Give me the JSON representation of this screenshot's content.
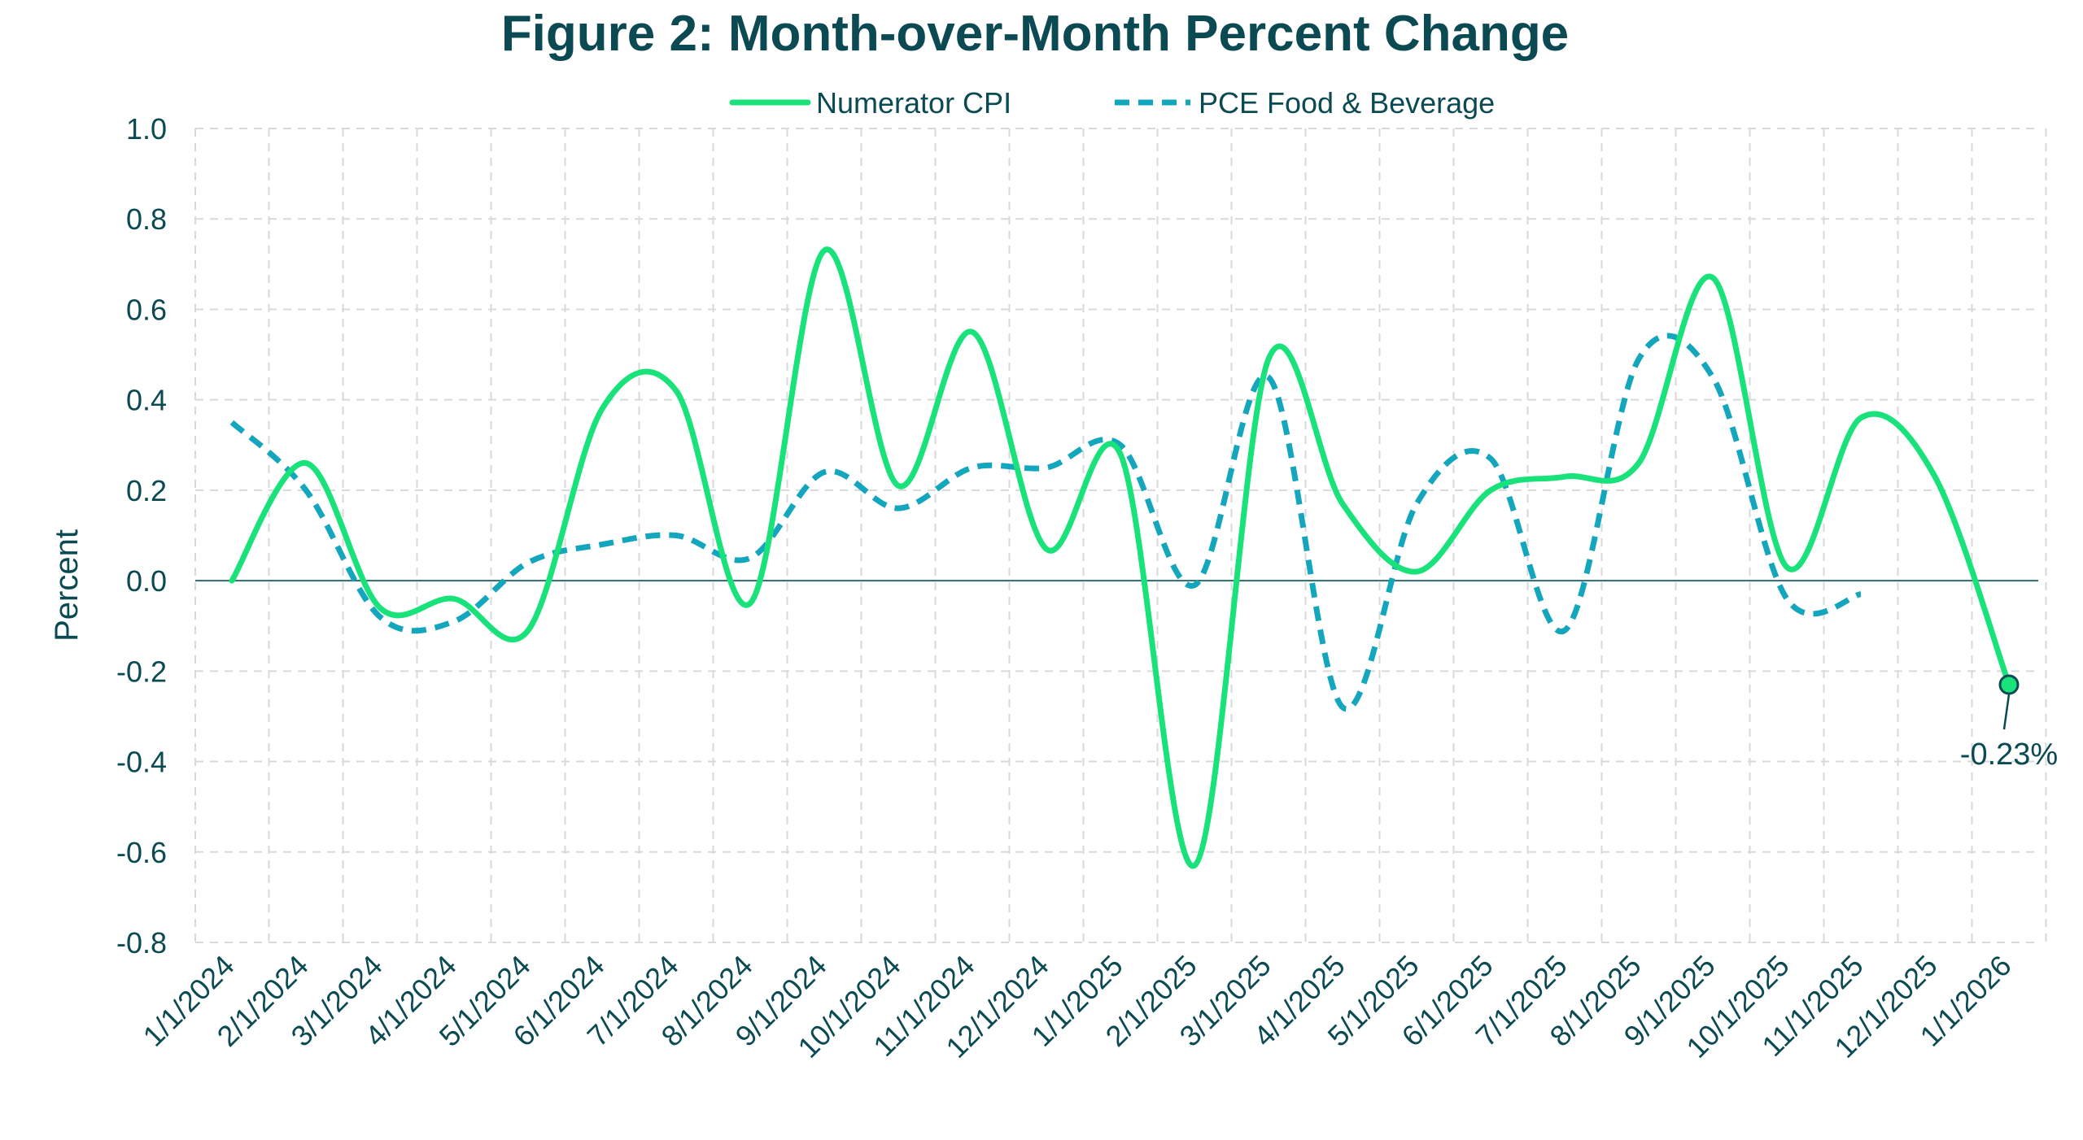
{
  "colors": {
    "title": "#0b4a52",
    "text": "#0b4a52",
    "grid": "#d9d9d9",
    "zero_line": "#2f6b6f",
    "numerator": "#19e27a",
    "pce": "#14a6bd",
    "marker_fill": "#19e27a",
    "marker_stroke": "#0b4a52"
  },
  "chart_data": {
    "type": "line",
    "title": "Figure 2: Month-over-Month Percent Change",
    "xlabel": "",
    "ylabel": "Percent",
    "ylim": [
      -0.8,
      1.0
    ],
    "yticks": [
      "1.0",
      "0.8",
      "0.6",
      "0.4",
      "0.2",
      "0.0",
      "-0.2",
      "-0.4",
      "-0.6",
      "-0.8"
    ],
    "grid": true,
    "legend_position": "top-center",
    "categories": [
      "1/1/2024",
      "2/1/2024",
      "3/1/2024",
      "4/1/2024",
      "5/1/2024",
      "6/1/2024",
      "7/1/2024",
      "8/1/2024",
      "9/1/2024",
      "10/1/2024",
      "11/1/2024",
      "12/1/2024",
      "1/1/2025",
      "2/1/2025",
      "3/1/2025",
      "4/1/2025",
      "5/1/2025",
      "6/1/2025",
      "7/1/2025",
      "8/1/2025",
      "9/1/2025",
      "10/1/2025",
      "11/1/2025",
      "12/1/2025",
      "1/1/2026"
    ],
    "series": [
      {
        "name": "Numerator CPI",
        "style": "solid",
        "values": [
          0.0,
          0.26,
          -0.06,
          -0.04,
          -0.11,
          0.38,
          0.42,
          -0.05,
          0.73,
          0.21,
          0.55,
          0.07,
          0.28,
          -0.63,
          0.49,
          0.17,
          0.02,
          0.2,
          0.23,
          0.26,
          0.67,
          0.03,
          0.36,
          0.23,
          -0.23
        ]
      },
      {
        "name": "PCE Food & Beverage",
        "style": "dashed",
        "values": [
          0.35,
          0.2,
          -0.08,
          -0.09,
          0.04,
          0.08,
          0.1,
          0.05,
          0.24,
          0.16,
          0.25,
          0.25,
          0.3,
          -0.01,
          0.45,
          -0.28,
          0.17,
          0.27,
          -0.11,
          0.49,
          0.45,
          -0.04,
          -0.03,
          null,
          null
        ]
      }
    ],
    "annotation": {
      "text": "-0.23%",
      "series": "Numerator CPI",
      "category": "1/1/2026",
      "value": -0.23
    }
  }
}
